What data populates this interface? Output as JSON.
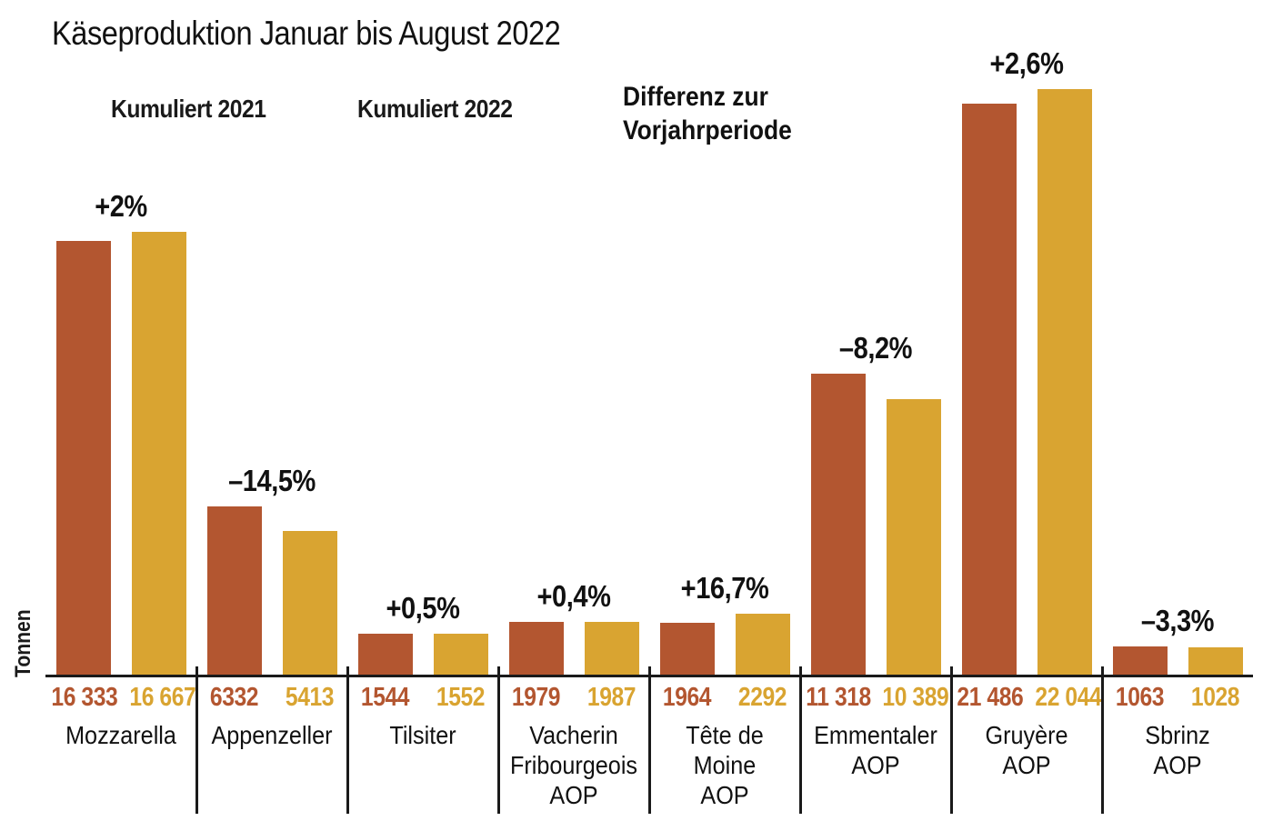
{
  "title": "Käseproduktion Januar bis August 2022",
  "legend": {
    "series1": "Kumuliert 2021",
    "series2": "Kumuliert 2022",
    "note": "Differenz zur\nVorjahrperiode"
  },
  "axis": {
    "y_label": "Tonnen"
  },
  "colors": {
    "series2021": "#b35630",
    "series2022": "#d9a431",
    "text": "#1a1a1a"
  },
  "chart_data": {
    "type": "bar",
    "title": "Käseproduktion Januar bis August 2022",
    "ylabel": "Tonnen",
    "ylim": [
      0,
      22044
    ],
    "grid": false,
    "legend_position": "top-left",
    "annotation": "Differenz zur Vorjahrperiode",
    "categories": [
      "Mozzarella",
      "Appenzeller",
      "Tilsiter",
      "Vacherin Fribourgeois AOP",
      "Tête de Moine AOP",
      "Emmentaler AOP",
      "Gruyère AOP",
      "Sbrinz AOP"
    ],
    "series": [
      {
        "name": "Kumuliert 2021",
        "color": "#b35630",
        "values": [
          16333,
          6332,
          1544,
          1979,
          1964,
          11318,
          21486,
          1063
        ]
      },
      {
        "name": "Kumuliert 2022",
        "color": "#d9a431",
        "values": [
          16667,
          5413,
          1552,
          1987,
          2292,
          10389,
          22044,
          1028
        ]
      }
    ],
    "diff_labels": [
      "+2%",
      "–14,5%",
      "+0,5%",
      "+0,4%",
      "+16,7%",
      "–8,2%",
      "+2,6%",
      "–3,3%"
    ],
    "groups": [
      {
        "category": "Mozzarella",
        "diff": "+2%",
        "v2021": 16333,
        "v2022": 16667,
        "label2021": "16 333",
        "label2022": "16 667"
      },
      {
        "category": "Appenzeller",
        "diff": "–14,5%",
        "v2021": 6332,
        "v2022": 5413,
        "label2021": "6332",
        "label2022": "5413"
      },
      {
        "category": "Tilsiter",
        "diff": "+0,5%",
        "v2021": 1544,
        "v2022": 1552,
        "label2021": "1544",
        "label2022": "1552"
      },
      {
        "category": "Vacherin\nFribourgeois\nAOP",
        "diff": "+0,4%",
        "v2021": 1979,
        "v2022": 1987,
        "label2021": "1979",
        "label2022": "1987"
      },
      {
        "category": "Tête de\nMoine\nAOP",
        "diff": "+16,7%",
        "v2021": 1964,
        "v2022": 2292,
        "label2021": "1964",
        "label2022": "2292"
      },
      {
        "category": "Emmentaler\nAOP",
        "diff": "–8,2%",
        "v2021": 11318,
        "v2022": 10389,
        "label2021": "11 318",
        "label2022": "10 389"
      },
      {
        "category": "Gruyère\nAOP",
        "diff": "+2,6%",
        "v2021": 21486,
        "v2022": 22044,
        "label2021": "21 486",
        "label2022": "22 044"
      },
      {
        "category": "Sbrinz\nAOP",
        "diff": "–3,3%",
        "v2021": 1063,
        "v2022": 1028,
        "label2021": "1063",
        "label2022": "1028"
      }
    ]
  }
}
